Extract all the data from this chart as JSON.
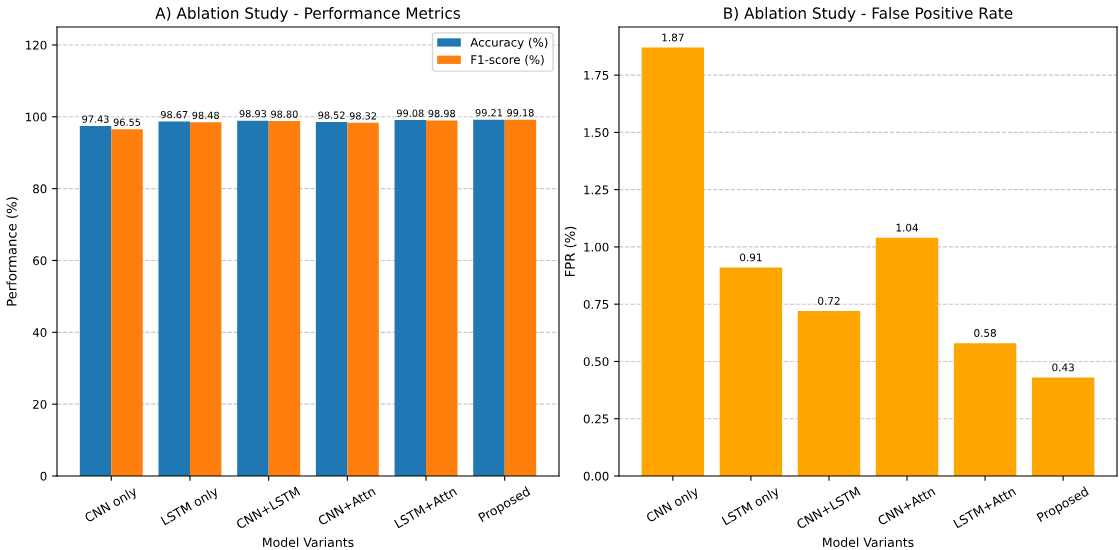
{
  "chart_data": [
    {
      "type": "bar",
      "title": "A) Ablation Study - Performance Metrics",
      "xlabel": "Model Variants",
      "ylabel": "Performance (%)",
      "categories": [
        "CNN only",
        "LSTM only",
        "CNN+LSTM",
        "CNN+Attn",
        "LSTM+Attn",
        "Proposed"
      ],
      "series": [
        {
          "name": "Accuracy (%)",
          "color": "#1f77b4",
          "values": [
            97.43,
            98.67,
            98.93,
            98.52,
            99.08,
            99.21
          ]
        },
        {
          "name": "F1-score (%)",
          "color": "#ff7f0e",
          "values": [
            96.55,
            98.48,
            98.8,
            98.32,
            98.98,
            99.18
          ]
        }
      ],
      "value_labels": [
        [
          "97.43",
          "98.67",
          "98.93",
          "98.52",
          "99.08",
          "99.21"
        ],
        [
          "96.55",
          "98.48",
          "98.80",
          "98.32",
          "98.98",
          "99.18"
        ]
      ],
      "ylim": [
        0,
        125
      ],
      "yticks": [
        0,
        20,
        40,
        60,
        80,
        100,
        120
      ],
      "grid": "y",
      "legend": "top right"
    },
    {
      "type": "bar",
      "title": "B) Ablation Study - False Positive Rate",
      "xlabel": "Model Variants",
      "ylabel": "FPR (%)",
      "categories": [
        "CNN only",
        "LSTM only",
        "CNN+LSTM",
        "CNN+Attn",
        "LSTM+Attn",
        "Proposed"
      ],
      "series": [
        {
          "color": "#ffa500",
          "values": [
            1.87,
            0.91,
            0.72,
            1.04,
            0.58,
            0.43
          ]
        }
      ],
      "data_labels": true,
      "ylim": [
        0,
        1.96
      ],
      "yticks": [
        {
          "value": 0,
          "label": "0.00"
        },
        {
          "value": 0.25,
          "label": "0.25"
        },
        {
          "value": 0.5,
          "label": "0.50"
        },
        {
          "value": 0.75,
          "label": "0.75"
        },
        {
          "value": 1,
          "label": "1.00"
        },
        {
          "value": 1.25,
          "label": "1.25"
        },
        {
          "value": 1.5,
          "label": "1.50"
        },
        {
          "value": 1.75,
          "label": "1.75"
        }
      ],
      "grid": "y"
    }
  ]
}
